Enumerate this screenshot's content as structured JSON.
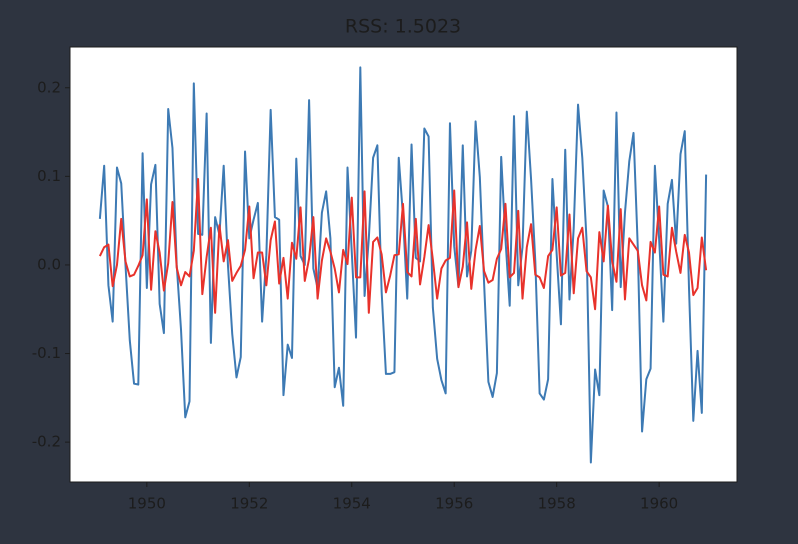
{
  "chart_data": {
    "type": "line",
    "title": "RSS: 1.5023",
    "x": [
      1949.083,
      1949.167,
      1949.25,
      1949.333,
      1949.417,
      1949.5,
      1949.583,
      1949.667,
      1949.75,
      1949.833,
      1949.917,
      1950.0,
      1950.083,
      1950.167,
      1950.25,
      1950.333,
      1950.417,
      1950.5,
      1950.583,
      1950.667,
      1950.75,
      1950.833,
      1950.917,
      1951.0,
      1951.083,
      1951.167,
      1951.25,
      1951.333,
      1951.417,
      1951.5,
      1951.583,
      1951.667,
      1951.75,
      1951.833,
      1951.917,
      1952.0,
      1952.083,
      1952.167,
      1952.25,
      1952.333,
      1952.417,
      1952.5,
      1952.583,
      1952.667,
      1952.75,
      1952.833,
      1952.917,
      1953.0,
      1953.083,
      1953.167,
      1953.25,
      1953.333,
      1953.417,
      1953.5,
      1953.583,
      1953.667,
      1953.75,
      1953.833,
      1953.917,
      1954.0,
      1954.083,
      1954.167,
      1954.25,
      1954.333,
      1954.417,
      1954.5,
      1954.583,
      1954.667,
      1954.75,
      1954.833,
      1954.917,
      1955.0,
      1955.083,
      1955.167,
      1955.25,
      1955.333,
      1955.417,
      1955.5,
      1955.583,
      1955.667,
      1955.75,
      1955.833,
      1955.917,
      1956.0,
      1956.083,
      1956.167,
      1956.25,
      1956.333,
      1956.417,
      1956.5,
      1956.583,
      1956.667,
      1956.75,
      1956.833,
      1956.917,
      1957.0,
      1957.083,
      1957.167,
      1957.25,
      1957.333,
      1957.417,
      1957.5,
      1957.583,
      1957.667,
      1957.75,
      1957.833,
      1957.917,
      1958.0,
      1958.083,
      1958.167,
      1958.25,
      1958.333,
      1958.417,
      1958.5,
      1958.583,
      1958.667,
      1958.75,
      1958.833,
      1958.917,
      1959.0,
      1959.083,
      1959.167,
      1959.25,
      1959.333,
      1959.417,
      1959.5,
      1959.583,
      1959.667,
      1959.75,
      1959.833,
      1959.917,
      1960.0,
      1960.083,
      1960.167,
      1960.25,
      1960.333,
      1960.417,
      1960.5,
      1960.583,
      1960.667,
      1960.75,
      1960.833,
      1960.917
    ],
    "series": [
      {
        "color": "#3d7ab4",
        "values": [
          0.052,
          0.112,
          -0.023,
          -0.064,
          0.11,
          0.092,
          0.0,
          -0.085,
          -0.134,
          -0.135,
          0.126,
          -0.026,
          0.091,
          0.113,
          -0.044,
          -0.077,
          0.176,
          0.132,
          0.0,
          -0.073,
          -0.172,
          -0.154,
          0.205,
          0.035,
          0.034,
          0.171,
          -0.088,
          0.054,
          0.034,
          0.112,
          0.0,
          -0.078,
          -0.127,
          -0.104,
          0.128,
          0.03,
          0.051,
          0.07,
          -0.064,
          0.011,
          0.175,
          0.054,
          0.051,
          -0.147,
          -0.09,
          -0.105,
          0.12,
          0.01,
          0.0,
          0.186,
          -0.004,
          -0.026,
          0.059,
          0.083,
          0.03,
          -0.138,
          -0.116,
          -0.159,
          0.11,
          0.015,
          -0.082,
          0.223,
          -0.035,
          0.03,
          0.121,
          0.135,
          -0.03,
          -0.123,
          -0.123,
          -0.121,
          0.121,
          0.055,
          -0.038,
          0.136,
          0.008,
          0.004,
          0.154,
          0.145,
          -0.048,
          -0.106,
          -0.13,
          -0.145,
          0.16,
          0.021,
          -0.025,
          0.135,
          -0.013,
          0.016,
          0.162,
          0.099,
          -0.02,
          -0.132,
          -0.149,
          -0.122,
          0.122,
          0.029,
          -0.046,
          0.168,
          -0.023,
          0.02,
          0.173,
          0.097,
          0.004,
          -0.145,
          -0.152,
          -0.129,
          0.097,
          0.012,
          -0.067,
          0.13,
          -0.039,
          0.042,
          0.181,
          0.121,
          0.028,
          -0.223,
          -0.118,
          -0.147,
          0.084,
          0.066,
          -0.051,
          0.172,
          -0.025,
          0.059,
          0.117,
          0.149,
          0.02,
          -0.188,
          -0.129,
          -0.117,
          0.112,
          0.029,
          -0.064,
          0.069,
          0.096,
          0.024,
          0.125,
          0.151,
          -0.026,
          -0.176,
          -0.097,
          -0.167,
          0.102
        ]
      },
      {
        "color": "#e8322b",
        "values": [
          0.01,
          0.02,
          0.023,
          -0.024,
          0.0,
          0.052,
          0.004,
          -0.013,
          -0.011,
          -0.001,
          0.011,
          0.074,
          -0.028,
          0.038,
          0.014,
          -0.029,
          0.002,
          0.071,
          -0.003,
          -0.023,
          -0.008,
          -0.013,
          0.016,
          0.097,
          -0.033,
          0.009,
          0.042,
          -0.054,
          0.045,
          0.004,
          0.028,
          -0.018,
          -0.009,
          -0.001,
          0.017,
          0.066,
          -0.015,
          0.014,
          0.014,
          -0.023,
          0.028,
          0.049,
          -0.021,
          0.008,
          -0.038,
          0.025,
          0.007,
          0.065,
          -0.018,
          0.007,
          0.054,
          -0.038,
          0.005,
          0.03,
          0.015,
          -0.004,
          -0.031,
          0.017,
          0.001,
          0.076,
          -0.014,
          -0.014,
          0.083,
          -0.054,
          0.026,
          0.031,
          0.012,
          -0.031,
          -0.012,
          0.011,
          0.012,
          0.069,
          -0.008,
          -0.013,
          0.052,
          -0.022,
          0.009,
          0.045,
          0.006,
          -0.038,
          -0.004,
          0.005,
          0.008,
          0.084,
          -0.025,
          -0.002,
          0.048,
          -0.027,
          0.017,
          0.044,
          -0.007,
          -0.02,
          -0.017,
          0.007,
          0.018,
          0.069,
          -0.014,
          -0.009,
          0.061,
          -0.038,
          0.02,
          0.046,
          -0.011,
          -0.014,
          -0.026,
          0.01,
          0.017,
          0.065,
          -0.012,
          -0.009,
          0.057,
          -0.032,
          0.03,
          0.042,
          -0.007,
          -0.014,
          -0.05,
          0.037,
          0.004,
          0.067,
          0.004,
          -0.019,
          0.063,
          -0.039,
          0.03,
          0.023,
          0.016,
          -0.023,
          -0.04,
          0.026,
          0.014,
          0.066,
          -0.011,
          -0.013,
          0.042,
          0.015,
          -0.009,
          0.034,
          0.014,
          -0.034,
          -0.026,
          0.031,
          -0.006
        ]
      }
    ],
    "xlim": [
      1948.5,
      1961.52
    ],
    "xticks": [
      1950,
      1952,
      1954,
      1956,
      1958,
      1960
    ],
    "ylim": [
      -0.245,
      0.246
    ],
    "yticks": [
      -0.2,
      -0.1,
      {
        "value": 0,
        "label": "0.0"
      },
      0.1,
      0.2
    ]
  }
}
